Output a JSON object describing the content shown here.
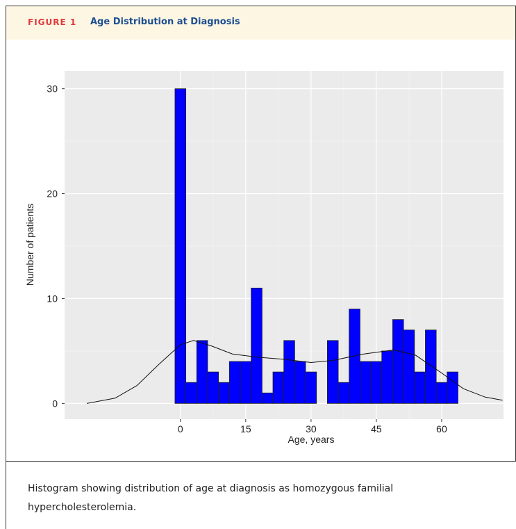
{
  "figure_label": "FIGURE 1",
  "chart_data": {
    "type": "histogram",
    "title": "Age Distribution at Diagnosis",
    "xlabel": "Age, years",
    "ylabel": "Number of patients",
    "bins": [
      -1.25,
      1.25,
      3.75,
      6.25,
      8.75,
      11.25,
      13.75,
      16.25,
      18.75,
      21.25,
      23.75,
      26.25,
      28.75,
      31.25,
      33.75,
      36.25,
      38.75,
      41.25,
      43.75,
      46.25,
      48.75,
      51.25,
      53.75,
      56.25,
      58.75,
      61.25,
      63.75
    ],
    "values": [
      30,
      2,
      6,
      3,
      2,
      4,
      4,
      11,
      1,
      3,
      6,
      4,
      3,
      0,
      6,
      2,
      9,
      4,
      4,
      5,
      8,
      7,
      3,
      7,
      2,
      3
    ],
    "color": "#0000ff",
    "density": {
      "x": [
        -21.5,
        -15,
        -10,
        -5,
        0,
        3,
        7,
        12,
        18,
        24,
        30,
        35,
        42,
        49,
        54,
        60,
        65,
        70,
        74
      ],
      "y": [
        0,
        0.5,
        1.7,
        3.7,
        5.6,
        6.0,
        5.5,
        4.7,
        4.4,
        4.2,
        3.9,
        4.1,
        4.7,
        5.1,
        4.6,
        2.9,
        1.4,
        0.6,
        0.3
      ]
    },
    "xlim": [
      -26.6,
      74.2
    ],
    "ylim": [
      -1.5,
      31.7
    ],
    "xticks": [
      0,
      15,
      30,
      45,
      60
    ],
    "yticks": [
      0,
      10,
      20,
      30
    ],
    "grid": true
  },
  "caption": "Histogram showing distribution of age at diagnosis as homozygous familial hypercholesterolemia."
}
